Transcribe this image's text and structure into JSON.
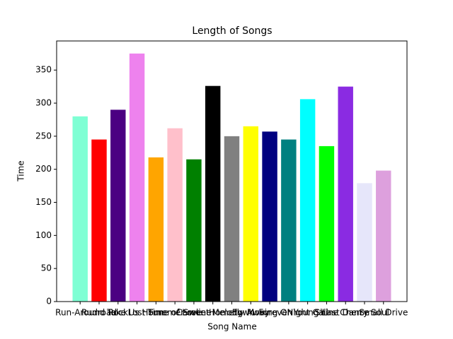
{
  "chart_data": {
    "type": "bar",
    "title": "Length of Songs",
    "x_label": "Song Name",
    "y_label": "Time",
    "categories": [
      "Run-Around",
      "Rudroad",
      "Rock",
      "Take Us Home",
      "Lost Summer",
      "Time of Love",
      "Caroline",
      "Sweet Melody",
      "Hometown",
      "Fly Away",
      "Moving On",
      "Forever Young",
      "Night Call",
      "Shine",
      "Last Dance",
      "Cherry Soul",
      "Small Drive"
    ],
    "values": [
      280,
      245,
      290,
      375,
      218,
      262,
      215,
      326,
      250,
      265,
      257,
      245,
      306,
      235,
      325,
      179,
      198
    ],
    "colors": [
      "aquamarine",
      "red",
      "indigo",
      "violet",
      "orange",
      "pink",
      "green",
      "black",
      "gray",
      "yellow",
      "navy",
      "teal",
      "cyan",
      "lime",
      "blueviolet",
      "lavender",
      "plum"
    ],
    "ylim": [
      0,
      394
    ],
    "yticks": [
      0,
      50,
      100,
      150,
      200,
      250,
      300,
      350
    ]
  }
}
